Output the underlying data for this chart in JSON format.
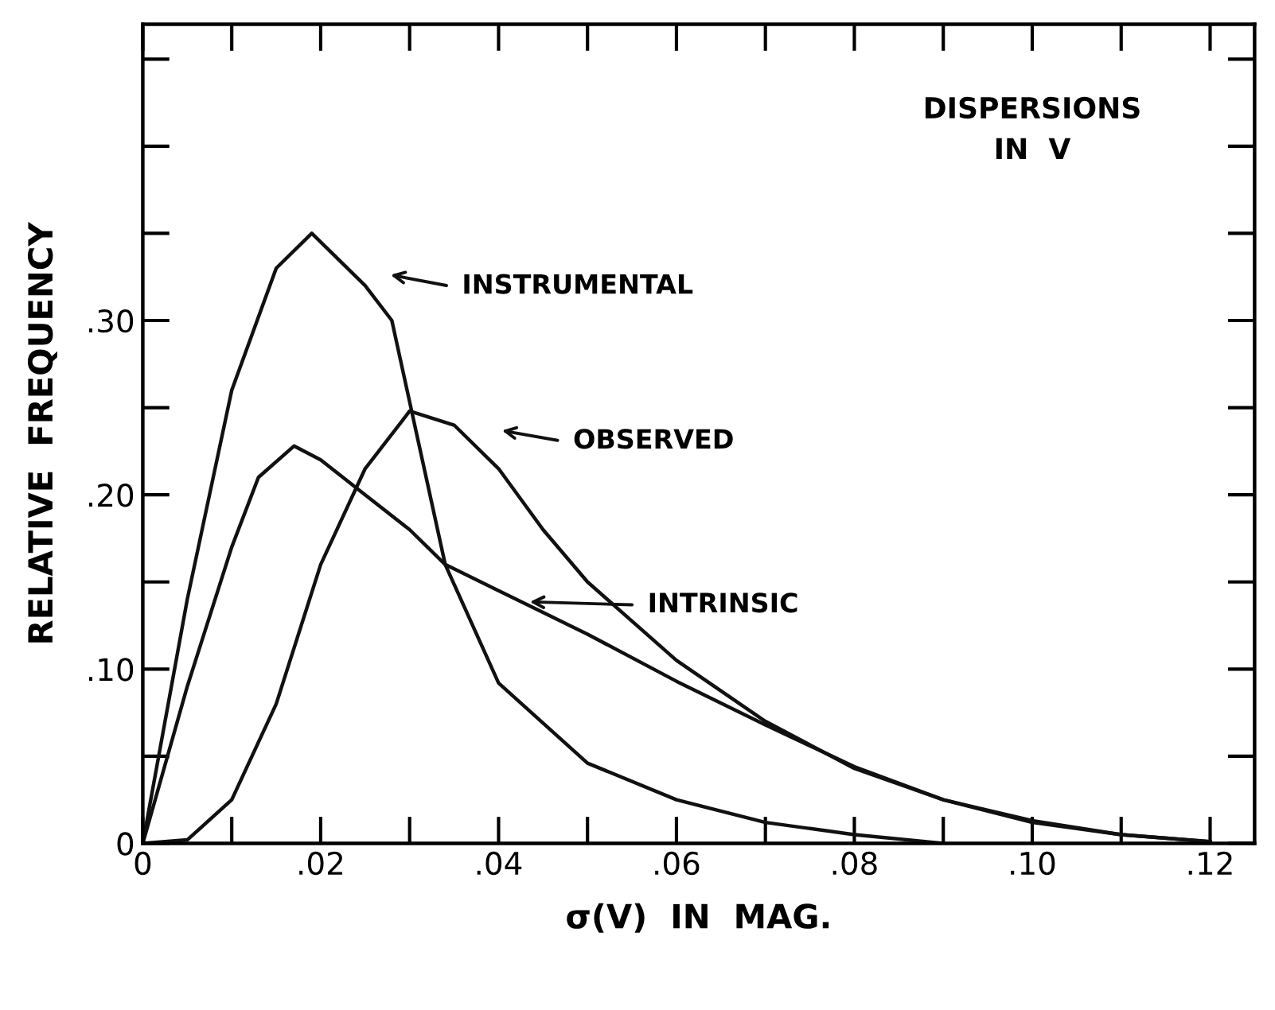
{
  "chart_data": {
    "type": "line",
    "xlabel": "σ(V)  IN  MAG.",
    "ylabel": "RELATIVE  FREQUENCY",
    "xlim": [
      0,
      0.125
    ],
    "ylim": [
      0,
      0.47
    ],
    "xticks": [
      {
        "value": 0,
        "label": "0"
      },
      {
        "value": 0.02,
        "label": ".02"
      },
      {
        "value": 0.04,
        "label": ".04"
      },
      {
        "value": 0.06,
        "label": ".06"
      },
      {
        "value": 0.08,
        "label": ".08"
      },
      {
        "value": 0.1,
        "label": ".10"
      },
      {
        "value": 0.12,
        "label": ".12"
      }
    ],
    "yticks": [
      {
        "value": 0,
        "label": "0"
      },
      {
        "value": 0.1,
        "label": ".10"
      },
      {
        "value": 0.2,
        "label": ".20"
      },
      {
        "value": 0.3,
        "label": ".30"
      }
    ],
    "grid": false,
    "legend": false,
    "marker": "none",
    "line_style": "solid",
    "series": [
      {
        "color": "#111111",
        "x": [
          0,
          0.005,
          0.01,
          0.015,
          0.019,
          0.025,
          0.028,
          0.031,
          0.034,
          0.04,
          0.05,
          0.06,
          0.07,
          0.08,
          0.09
        ],
        "values": [
          0,
          0.14,
          0.26,
          0.33,
          0.35,
          0.32,
          0.3,
          0.23,
          0.16,
          0.092,
          0.046,
          0.025,
          0.012,
          0.005,
          0
        ]
      },
      {
        "color": "#111111",
        "x": [
          0,
          0.005,
          0.01,
          0.013,
          0.017,
          0.02,
          0.025,
          0.03,
          0.034,
          0.04,
          0.05,
          0.06,
          0.07,
          0.08,
          0.09,
          0.1,
          0.11,
          0.12
        ],
        "values": [
          0,
          0.09,
          0.17,
          0.21,
          0.228,
          0.22,
          0.2,
          0.18,
          0.16,
          0.145,
          0.12,
          0.093,
          0.068,
          0.044,
          0.025,
          0.012,
          0.005,
          0.001
        ]
      },
      {
        "color": "#111111",
        "x": [
          0,
          0.005,
          0.01,
          0.015,
          0.02,
          0.025,
          0.03,
          0.035,
          0.04,
          0.045,
          0.05,
          0.06,
          0.07,
          0.08,
          0.09,
          0.1,
          0.11,
          0.12
        ],
        "values": [
          0,
          0.002,
          0.025,
          0.08,
          0.16,
          0.215,
          0.248,
          0.24,
          0.215,
          0.18,
          0.15,
          0.105,
          0.07,
          0.043,
          0.025,
          0.013,
          0.005,
          0.001
        ]
      }
    ],
    "annotations": [
      "INSTRUMENTAL",
      "OBSERVED",
      "INTRINSIC",
      "DISPERSIONS\nIN  V"
    ]
  }
}
